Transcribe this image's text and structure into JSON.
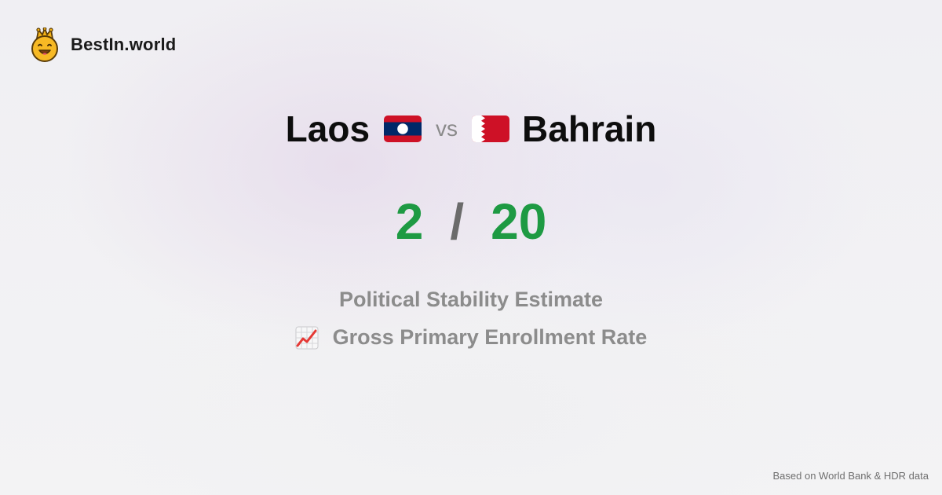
{
  "brand": {
    "name": "BestIn.world",
    "icon": "crowned-smiley-icon"
  },
  "comparison": {
    "left_country": "Laos",
    "left_flag": "laos-flag-icon",
    "vs_label": "vs",
    "right_country": "Bahrain",
    "right_flag": "bahrain-flag-icon"
  },
  "score": {
    "left": "2",
    "separator": "/",
    "right": "20"
  },
  "metrics": [
    {
      "label": "Political Stability Estimate"
    },
    {
      "icon": "chart-increasing-icon",
      "label": "Gross Primary Enrollment Rate"
    }
  ],
  "footer": {
    "text": "Based on World Bank & HDR data"
  },
  "colors": {
    "score": "#1e9a43",
    "text_dark": "#0d0d0d",
    "text_muted": "#8c8c8c",
    "laos_red": "#ce1126",
    "laos_blue": "#002868",
    "bahrain_red": "#ce1126"
  }
}
